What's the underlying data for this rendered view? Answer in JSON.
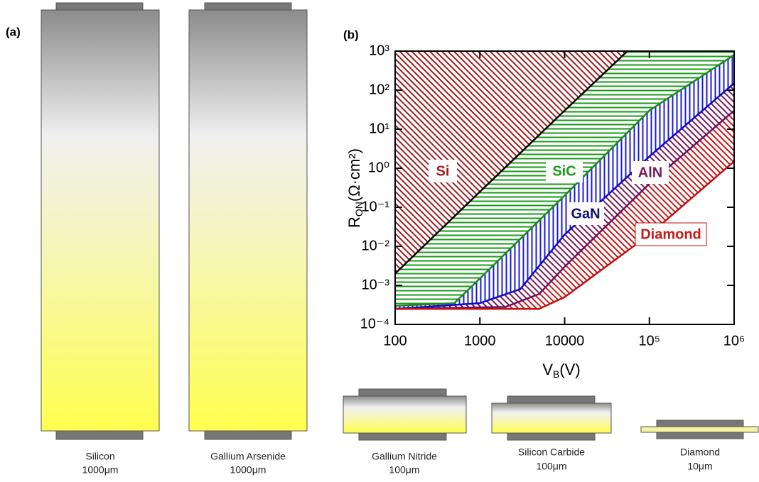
{
  "panels": [
    "(a)",
    "(b)"
  ],
  "devices": [
    {
      "name": "Silicon",
      "thickness": "1000μm"
    },
    {
      "name": "Gallium Arsenide",
      "thickness": "1000μm"
    },
    {
      "name": "Gallium Nitride",
      "thickness": "100μm"
    },
    {
      "name": "Silicon Carbide",
      "thickness": "100μm"
    },
    {
      "name": "Diamond",
      "thickness": "10μm"
    }
  ],
  "chart_data": {
    "type": "line",
    "xlabel": [
      "V",
      "B",
      "(V)"
    ],
    "ylabel": [
      "R",
      "ON",
      "(Ω·cm²)"
    ],
    "xscale": "log",
    "yscale": "log",
    "xlim": [
      100,
      1000000
    ],
    "ylim": [
      0.0001,
      1000
    ],
    "xticks": [
      100,
      1000,
      10000,
      {
        "value": 100000,
        "label": "10⁵"
      },
      {
        "value": 1000000,
        "label": "10⁶"
      }
    ],
    "yticks": [
      {
        "value": 0.0001,
        "label": "10⁻⁴"
      },
      {
        "value": 0.001,
        "label": "10⁻³"
      },
      {
        "value": 0.01,
        "label": "10⁻²"
      },
      {
        "value": 0.1,
        "label": "10⁻¹"
      },
      {
        "value": 1,
        "label": "10⁰"
      },
      {
        "value": 10,
        "label": "10¹"
      },
      {
        "value": 100,
        "label": "10²"
      },
      {
        "value": 1000,
        "label": "10³"
      }
    ],
    "series": [
      {
        "name": "Si",
        "color": "#000000",
        "hatch": "#a01c1c",
        "x": [
          100,
          1000,
          10000,
          55000
        ],
        "values": [
          0.002,
          0.25,
          30,
          1000
        ]
      },
      {
        "name": "SiC",
        "color": "#1a8a1a",
        "hatch": "#1a9a1a",
        "x": [
          100,
          500,
          1000,
          10000,
          100000,
          1000000
        ],
        "values": [
          0.0003,
          0.00035,
          0.0015,
          0.2,
          30,
          800
        ]
      },
      {
        "name": "GaN",
        "color": "#0a0ad0",
        "hatch": "#1a1ae0",
        "x": [
          100,
          1000,
          3000,
          10000,
          100000,
          1000000
        ],
        "values": [
          0.00025,
          0.00035,
          0.0008,
          0.02,
          2,
          150
        ]
      },
      {
        "name": "AlN",
        "color": "#6a1060",
        "hatch": "#7a1a5a",
        "x": [
          100,
          2000,
          5000,
          10000,
          100000,
          1000000
        ],
        "values": [
          0.00025,
          0.00028,
          0.0006,
          0.003,
          0.4,
          30
        ]
      },
      {
        "name": "Diamond",
        "color": "#c01010",
        "hatch": "#c81818",
        "x": [
          100,
          5000,
          10000,
          100000,
          1000000
        ],
        "values": [
          0.00025,
          0.00025,
          0.0005,
          0.02,
          1.5
        ]
      }
    ]
  }
}
